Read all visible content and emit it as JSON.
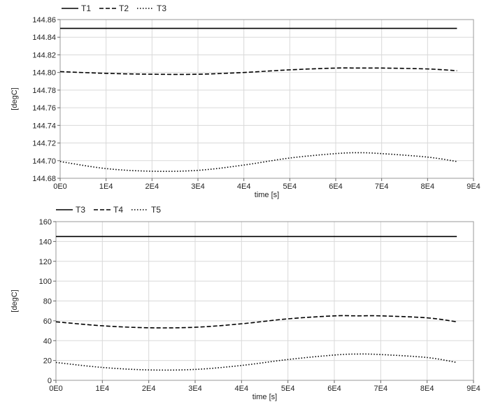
{
  "chart_data": [
    {
      "type": "line",
      "title": "",
      "xlabel": "time [s]",
      "ylabel": "[degC]",
      "xlim": [
        0,
        90000
      ],
      "ylim": [
        144.68,
        144.86
      ],
      "x_ticks": [
        0,
        10000,
        20000,
        30000,
        40000,
        50000,
        60000,
        70000,
        80000,
        90000
      ],
      "x_tick_labels": [
        "0E0",
        "1E4",
        "2E4",
        "3E4",
        "4E4",
        "5E4",
        "6E4",
        "7E4",
        "8E4",
        "9E4"
      ],
      "y_ticks": [
        144.68,
        144.7,
        144.72,
        144.74,
        144.76,
        144.78,
        144.8,
        144.82,
        144.84,
        144.86
      ],
      "y_tick_labels": [
        "144.68",
        "144.70",
        "144.72",
        "144.74",
        "144.76",
        "144.78",
        "144.80",
        "144.82",
        "144.84",
        "144.86"
      ],
      "grid": true,
      "legend": "top-left",
      "x": [
        0,
        10000,
        20000,
        30000,
        40000,
        50000,
        60000,
        65000,
        70000,
        80000,
        86400
      ],
      "series": [
        {
          "name": "T1",
          "style": "solid",
          "color": "#000000",
          "values": [
            144.85,
            144.85,
            144.85,
            144.85,
            144.85,
            144.85,
            144.85,
            144.85,
            144.85,
            144.85,
            144.85
          ]
        },
        {
          "name": "T2",
          "style": "dashed",
          "color": "#000000",
          "values": [
            144.801,
            144.799,
            144.798,
            144.798,
            144.8,
            144.803,
            144.805,
            144.805,
            144.805,
            144.804,
            144.802
          ]
        },
        {
          "name": "T3",
          "style": "dotted",
          "color": "#000000",
          "values": [
            144.699,
            144.691,
            144.688,
            144.689,
            144.695,
            144.703,
            144.708,
            144.709,
            144.708,
            144.704,
            144.699
          ]
        }
      ]
    },
    {
      "type": "line",
      "title": "",
      "xlabel": "time [s]",
      "ylabel": "[degC]",
      "xlim": [
        0,
        90000
      ],
      "ylim": [
        0,
        160
      ],
      "x_ticks": [
        0,
        10000,
        20000,
        30000,
        40000,
        50000,
        60000,
        70000,
        80000,
        90000
      ],
      "x_tick_labels": [
        "0E0",
        "1E4",
        "2E4",
        "3E4",
        "4E4",
        "5E4",
        "6E4",
        "7E4",
        "8E4",
        "9E4"
      ],
      "y_ticks": [
        0,
        20,
        40,
        60,
        80,
        100,
        120,
        140,
        160
      ],
      "y_tick_labels": [
        "0",
        "20",
        "40",
        "60",
        "80",
        "100",
        "120",
        "140",
        "160"
      ],
      "grid": true,
      "legend": "top-left",
      "x": [
        0,
        10000,
        20000,
        30000,
        40000,
        50000,
        60000,
        65000,
        70000,
        80000,
        86400
      ],
      "series": [
        {
          "name": "T3",
          "style": "solid",
          "color": "#000000",
          "values": [
            145,
            145,
            145,
            145,
            145,
            145,
            145,
            145,
            145,
            145,
            145
          ]
        },
        {
          "name": "T4",
          "style": "dashed",
          "color": "#000000",
          "values": [
            59,
            55,
            53,
            53.5,
            57,
            62,
            65,
            65,
            65,
            63,
            59
          ]
        },
        {
          "name": "T5",
          "style": "dotted",
          "color": "#000000",
          "values": [
            18,
            13,
            10.5,
            11,
            15,
            21,
            25.5,
            26.5,
            26,
            23,
            18
          ]
        }
      ]
    }
  ]
}
